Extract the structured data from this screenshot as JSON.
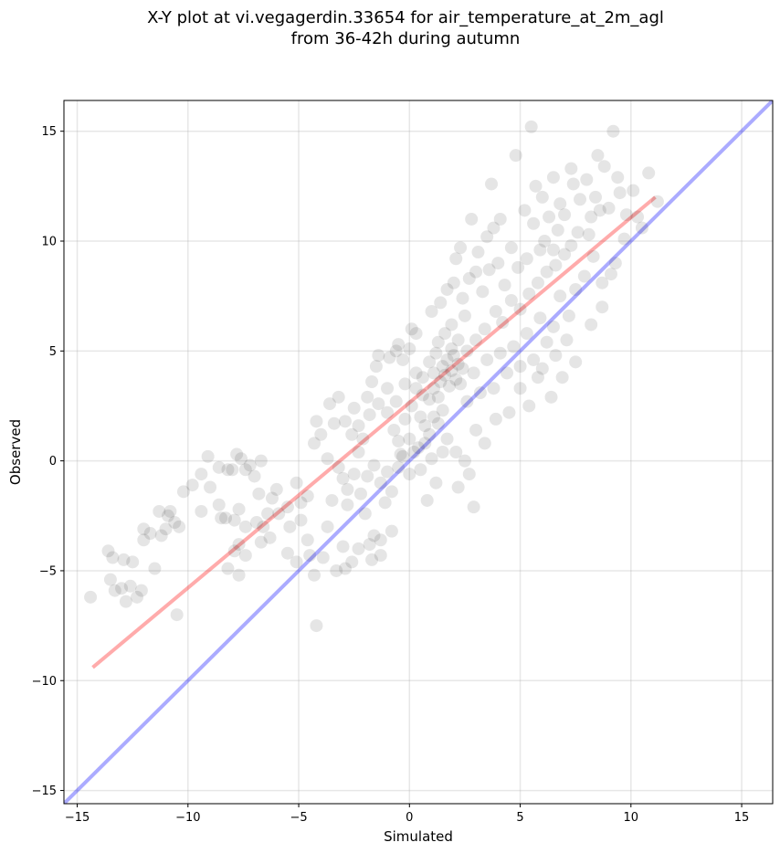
{
  "chart_data": {
    "type": "scatter",
    "title_lines": [
      "X-Y plot at vi.vegagerdin.33654 for air_temperature_at_2m_agl",
      "from 36-42h during autumn"
    ],
    "xlabel": "Simulated",
    "ylabel": "Observed",
    "xlim": [
      -15.6,
      16.4
    ],
    "ylim": [
      -15.6,
      16.4
    ],
    "xticks": [
      -15,
      -10,
      -5,
      0,
      5,
      10,
      15
    ],
    "yticks": [
      -15,
      -10,
      -5,
      0,
      5,
      10,
      15
    ],
    "xtick_labels": [
      "−15",
      "−10",
      "−5",
      "0",
      "5",
      "10",
      "15"
    ],
    "ytick_labels": [
      "−15",
      "−10",
      "−5",
      "0",
      "5",
      "10",
      "15"
    ],
    "grid": true,
    "point_color": "#000000",
    "point_opacity": 0.1,
    "reference_line": {
      "name": "1:1",
      "color": "#0000ff",
      "opacity": 0.33,
      "x": [
        -16,
        17
      ],
      "y": [
        -16,
        17
      ]
    },
    "fit_line": {
      "name": "fit",
      "color": "#ff0000",
      "opacity": 0.33,
      "x": [
        -14.3,
        11.1
      ],
      "y": [
        -9.4,
        12.0
      ]
    },
    "points": [
      [
        -14.4,
        -6.2
      ],
      [
        -13.6,
        -4.1
      ],
      [
        -13.4,
        -4.4
      ],
      [
        -13.5,
        -5.4
      ],
      [
        -13.0,
        -5.8
      ],
      [
        -12.8,
        -6.4
      ],
      [
        -12.6,
        -5.7
      ],
      [
        -12.3,
        -6.2
      ],
      [
        -12.1,
        -5.9
      ],
      [
        -12.5,
        -4.6
      ],
      [
        -12.0,
        -3.1
      ],
      [
        -12.0,
        -3.6
      ],
      [
        -11.7,
        -3.3
      ],
      [
        -11.3,
        -2.3
      ],
      [
        -11.2,
        -3.4
      ],
      [
        -10.9,
        -2.5
      ],
      [
        -10.6,
        -2.8
      ],
      [
        -10.4,
        -3.0
      ],
      [
        -11.5,
        -4.9
      ],
      [
        -10.5,
        -7.0
      ],
      [
        -10.2,
        -1.4
      ],
      [
        -9.8,
        -1.1
      ],
      [
        -9.4,
        -0.6
      ],
      [
        -9.1,
        0.2
      ],
      [
        -9.0,
        -1.2
      ],
      [
        -8.6,
        -0.3
      ],
      [
        -8.2,
        -0.4
      ],
      [
        -8.6,
        -2.0
      ],
      [
        -8.3,
        -2.6
      ],
      [
        -8.0,
        -0.4
      ],
      [
        -7.8,
        0.3
      ],
      [
        -7.6,
        0.1
      ],
      [
        -7.4,
        -0.4
      ],
      [
        -7.2,
        -0.2
      ],
      [
        -7.0,
        -0.7
      ],
      [
        -6.7,
        0.0
      ],
      [
        -7.7,
        -2.2
      ],
      [
        -7.4,
        -3.0
      ],
      [
        -7.7,
        -3.8
      ],
      [
        -7.9,
        -4.1
      ],
      [
        -7.4,
        -4.3
      ],
      [
        -6.9,
        -2.8
      ],
      [
        -6.6,
        -3.0
      ],
      [
        -6.4,
        -2.4
      ],
      [
        -6.3,
        -3.5
      ],
      [
        -6.7,
        -3.7
      ],
      [
        -8.2,
        -4.9
      ],
      [
        -7.7,
        -5.2
      ],
      [
        -6.0,
        -1.3
      ],
      [
        -5.5,
        -2.1
      ],
      [
        -5.4,
        -3.0
      ],
      [
        -5.5,
        -4.2
      ],
      [
        -5.1,
        -4.6
      ],
      [
        -4.9,
        -2.7
      ],
      [
        -4.6,
        -1.6
      ],
      [
        -4.6,
        -3.6
      ],
      [
        -4.5,
        -4.3
      ],
      [
        -4.3,
        -5.2
      ],
      [
        -4.2,
        -7.5
      ],
      [
        -3.9,
        -4.4
      ],
      [
        -3.7,
        -3.0
      ],
      [
        -3.3,
        -5.0
      ],
      [
        -2.9,
        -4.9
      ],
      [
        -2.6,
        -4.6
      ],
      [
        -3.0,
        -3.9
      ],
      [
        -2.3,
        -4.0
      ],
      [
        -1.8,
        -3.8
      ],
      [
        -1.7,
        -4.5
      ],
      [
        -1.3,
        -4.3
      ],
      [
        -1.6,
        -3.4
      ],
      [
        -1.3,
        -3.6
      ],
      [
        -0.8,
        -3.2
      ],
      [
        -4.3,
        0.8
      ],
      [
        -4.2,
        1.8
      ],
      [
        -4.0,
        1.2
      ],
      [
        -3.7,
        0.1
      ],
      [
        -3.4,
        1.7
      ],
      [
        -3.6,
        2.6
      ],
      [
        -3.2,
        2.9
      ],
      [
        -2.9,
        1.8
      ],
      [
        -2.6,
        1.2
      ],
      [
        -2.5,
        2.4
      ],
      [
        -2.3,
        1.6
      ],
      [
        -2.1,
        1.0
      ],
      [
        -2.3,
        0.4
      ],
      [
        -1.9,
        2.9
      ],
      [
        -1.7,
        3.6
      ],
      [
        -1.5,
        4.3
      ],
      [
        -1.4,
        4.8
      ],
      [
        -1.0,
        3.3
      ],
      [
        -0.9,
        4.7
      ],
      [
        -0.6,
        5.0
      ],
      [
        -0.5,
        5.3
      ],
      [
        -0.3,
        4.6
      ],
      [
        0.0,
        5.1
      ],
      [
        0.1,
        6.0
      ],
      [
        0.3,
        5.8
      ],
      [
        -1.8,
        2.1
      ],
      [
        -1.4,
        2.6
      ],
      [
        -1.0,
        2.2
      ],
      [
        -0.7,
        1.4
      ],
      [
        -0.5,
        0.9
      ],
      [
        -0.2,
        1.9
      ],
      [
        0.1,
        2.5
      ],
      [
        0.3,
        3.3
      ],
      [
        0.5,
        2.0
      ],
      [
        0.7,
        1.6
      ],
      [
        0.9,
        2.8
      ],
      [
        1.1,
        3.3
      ],
      [
        1.3,
        2.9
      ],
      [
        -3.2,
        -0.3
      ],
      [
        -3.0,
        -0.8
      ],
      [
        -2.8,
        -1.3
      ],
      [
        -2.5,
        -0.6
      ],
      [
        -2.2,
        -1.5
      ],
      [
        -1.9,
        -0.7
      ],
      [
        -1.6,
        -0.2
      ],
      [
        -1.3,
        -1.0
      ],
      [
        -1.0,
        -0.5
      ],
      [
        -0.8,
        -1.4
      ],
      [
        -0.5,
        -0.3
      ],
      [
        -0.3,
        0.2
      ],
      [
        0.0,
        -0.6
      ],
      [
        0.2,
        0.4
      ],
      [
        0.5,
        -0.4
      ],
      [
        0.7,
        0.8
      ],
      [
        1.0,
        0.1
      ],
      [
        1.2,
        -1.0
      ],
      [
        1.5,
        0.4
      ],
      [
        -2.0,
        -2.4
      ],
      [
        -2.8,
        -2.0
      ],
      [
        -3.5,
        -1.8
      ],
      [
        -1.1,
        -1.9
      ],
      [
        0.8,
        -1.8
      ],
      [
        2.2,
        -1.2
      ],
      [
        2.9,
        -2.1
      ],
      [
        0.6,
        3.8
      ],
      [
        0.9,
        4.5
      ],
      [
        1.1,
        4.0
      ],
      [
        1.2,
        4.9
      ],
      [
        1.4,
        3.6
      ],
      [
        1.5,
        4.3
      ],
      [
        1.6,
        3.9
      ],
      [
        1.7,
        4.6
      ],
      [
        1.8,
        3.4
      ],
      [
        1.9,
        4.1
      ],
      [
        2.0,
        4.8
      ],
      [
        2.1,
        3.7
      ],
      [
        2.2,
        4.4
      ],
      [
        1.3,
        5.4
      ],
      [
        1.6,
        5.8
      ],
      [
        1.9,
        6.2
      ],
      [
        2.2,
        5.5
      ],
      [
        2.5,
        6.6
      ],
      [
        1.0,
        6.8
      ],
      [
        1.4,
        7.2
      ],
      [
        1.7,
        7.8
      ],
      [
        2.0,
        8.1
      ],
      [
        2.4,
        7.4
      ],
      [
        2.7,
        8.3
      ],
      [
        2.1,
        9.2
      ],
      [
        2.3,
        9.7
      ],
      [
        2.8,
        11.0
      ],
      [
        3.0,
        8.6
      ],
      [
        3.3,
        7.7
      ],
      [
        3.6,
        8.7
      ],
      [
        3.8,
        10.6
      ],
      [
        3.7,
        12.6
      ],
      [
        4.0,
        9.0
      ],
      [
        4.3,
        8.0
      ],
      [
        4.6,
        9.7
      ],
      [
        4.9,
        8.8
      ],
      [
        4.8,
        13.9
      ],
      [
        5.3,
        9.2
      ],
      [
        5.6,
        10.8
      ],
      [
        5.5,
        15.2
      ],
      [
        5.9,
        9.6
      ],
      [
        6.1,
        10.0
      ],
      [
        6.3,
        11.1
      ],
      [
        6.0,
        12.0
      ],
      [
        6.5,
        9.6
      ],
      [
        6.7,
        10.5
      ],
      [
        7.0,
        11.2
      ],
      [
        7.3,
        9.8
      ],
      [
        7.4,
        12.6
      ],
      [
        7.7,
        11.9
      ],
      [
        8.0,
        12.8
      ],
      [
        8.2,
        11.1
      ],
      [
        8.5,
        13.9
      ],
      [
        8.8,
        13.4
      ],
      [
        9.0,
        11.5
      ],
      [
        9.2,
        15.0
      ],
      [
        9.5,
        12.2
      ],
      [
        10.1,
        12.3
      ],
      [
        10.3,
        11.1
      ],
      [
        10.5,
        10.6
      ],
      [
        10.8,
        13.1
      ],
      [
        11.2,
        11.8
      ],
      [
        9.7,
        10.1
      ],
      [
        9.3,
        9.0
      ],
      [
        8.7,
        8.1
      ],
      [
        8.3,
        9.3
      ],
      [
        7.9,
        8.4
      ],
      [
        7.5,
        7.8
      ],
      [
        7.2,
        6.6
      ],
      [
        6.8,
        7.5
      ],
      [
        6.5,
        6.1
      ],
      [
        6.2,
        5.4
      ],
      [
        5.9,
        6.5
      ],
      [
        5.6,
        4.6
      ],
      [
        5.3,
        5.8
      ],
      [
        5.0,
        4.3
      ],
      [
        4.7,
        5.2
      ],
      [
        4.4,
        4.0
      ],
      [
        4.1,
        4.9
      ],
      [
        3.8,
        3.3
      ],
      [
        3.5,
        4.6
      ],
      [
        3.2,
        3.1
      ],
      [
        2.9,
        4.0
      ],
      [
        2.6,
        2.7
      ],
      [
        2.3,
        3.5
      ],
      [
        3.0,
        5.5
      ],
      [
        3.4,
        6.0
      ],
      [
        3.9,
        6.8
      ],
      [
        4.2,
        6.3
      ],
      [
        4.6,
        7.3
      ],
      [
        5.0,
        6.9
      ],
      [
        5.4,
        7.6
      ],
      [
        5.8,
        8.1
      ],
      [
        6.2,
        8.6
      ],
      [
        6.6,
        8.9
      ],
      [
        7.0,
        9.4
      ],
      [
        4.5,
        2.2
      ],
      [
        5.0,
        3.3
      ],
      [
        5.4,
        2.5
      ],
      [
        6.0,
        4.2
      ],
      [
        6.6,
        4.8
      ],
      [
        7.1,
        5.5
      ],
      [
        7.5,
        4.5
      ],
      [
        8.2,
        6.2
      ],
      [
        8.7,
        7.0
      ],
      [
        9.1,
        8.5
      ],
      [
        3.0,
        1.4
      ],
      [
        3.4,
        0.8
      ],
      [
        3.9,
        1.9
      ],
      [
        2.5,
        0.0
      ],
      [
        2.7,
        -0.6
      ],
      [
        2.1,
        0.4
      ],
      [
        1.7,
        1.0
      ],
      [
        1.3,
        1.7
      ],
      [
        0.9,
        1.2
      ],
      [
        0.4,
        0.6
      ],
      [
        0.0,
        1.0
      ],
      [
        -0.4,
        0.3
      ],
      [
        6.9,
        3.8
      ],
      [
        6.4,
        2.9
      ],
      [
        5.8,
        3.8
      ],
      [
        -6.2,
        -1.7
      ],
      [
        -5.9,
        -2.4
      ],
      [
        -5.1,
        -1.0
      ],
      [
        -4.9,
        -1.9
      ],
      [
        -6.8,
        -1.5
      ],
      [
        -7.9,
        -2.7
      ],
      [
        -8.5,
        -2.6
      ],
      [
        -9.4,
        -2.3
      ],
      [
        -11.0,
        -3.1
      ],
      [
        -12.9,
        -4.5
      ],
      [
        -13.3,
        -5.9
      ],
      [
        -10.8,
        -2.3
      ],
      [
        1.9,
        5.1
      ],
      [
        2.4,
        4.2
      ],
      [
        2.6,
        5.0
      ],
      [
        1.5,
        2.3
      ],
      [
        1.1,
        2.0
      ],
      [
        0.6,
        3.0
      ],
      [
        0.3,
        4.0
      ],
      [
        -0.2,
        3.5
      ],
      [
        -0.6,
        2.7
      ],
      [
        8.1,
        10.3
      ],
      [
        8.6,
        11.4
      ],
      [
        6.8,
        11.7
      ],
      [
        7.6,
        10.4
      ],
      [
        9.4,
        12.9
      ],
      [
        3.1,
        9.5
      ],
      [
        3.5,
        10.2
      ],
      [
        4.1,
        11.0
      ],
      [
        5.2,
        11.4
      ],
      [
        5.7,
        12.5
      ],
      [
        6.5,
        12.9
      ],
      [
        7.3,
        13.3
      ],
      [
        8.4,
        12.0
      ],
      [
        9.8,
        11.2
      ]
    ]
  }
}
